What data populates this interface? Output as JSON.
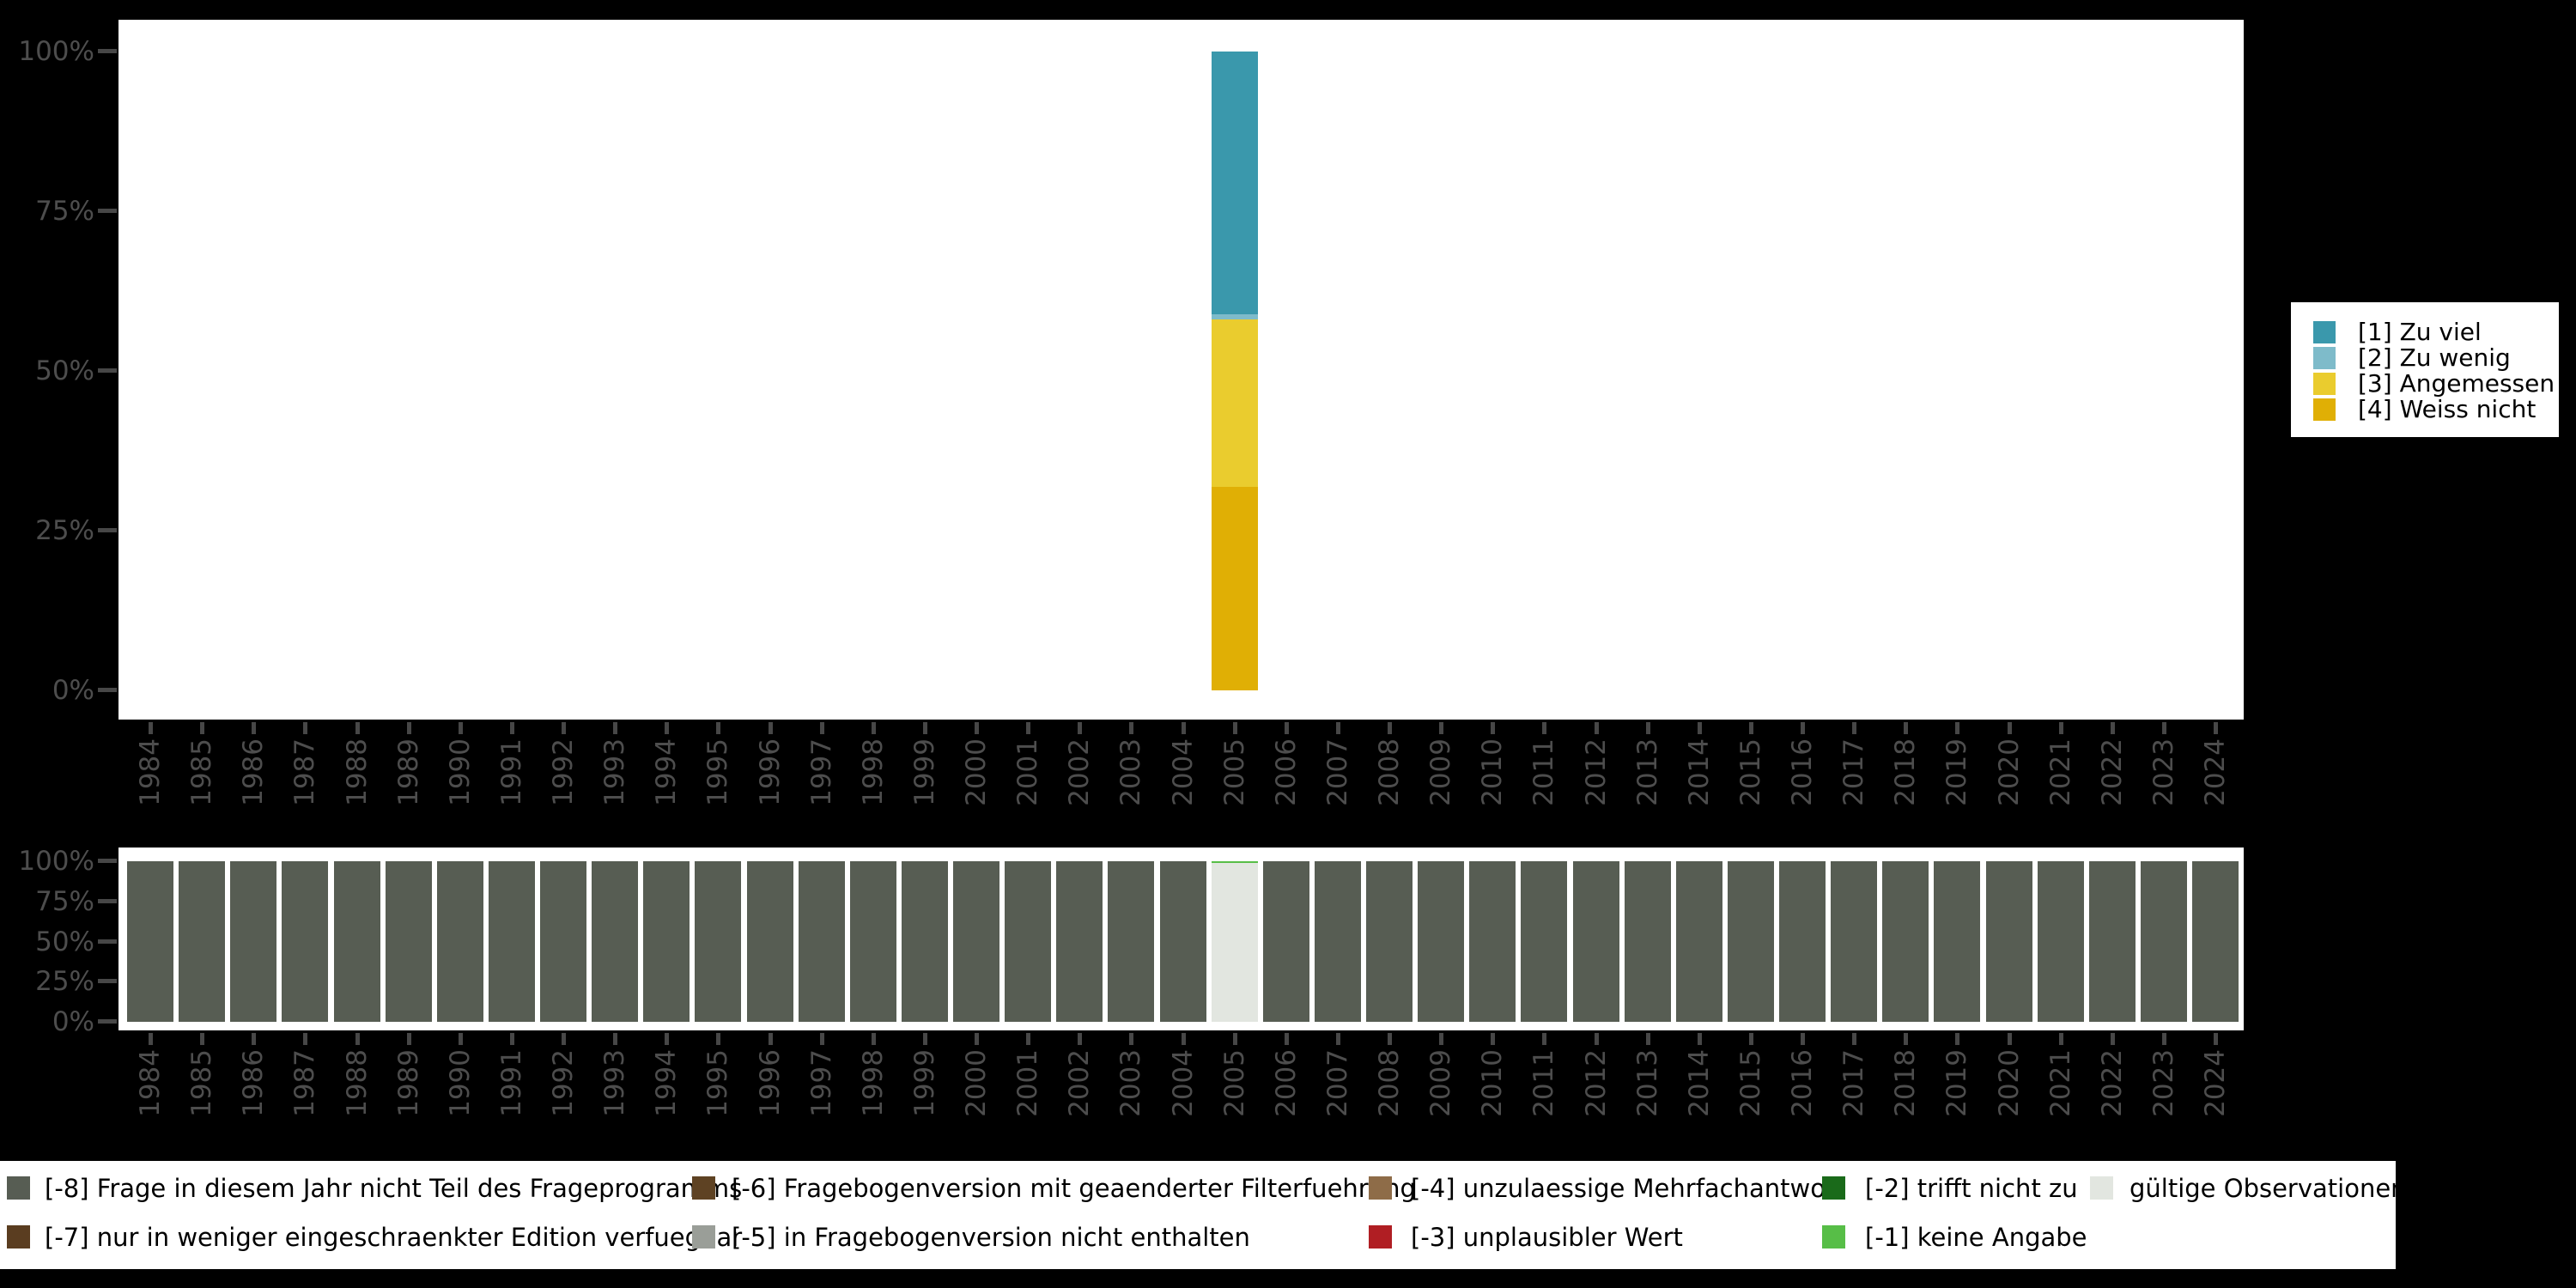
{
  "colors": {
    "background": "#000000",
    "panel": "#ffffff",
    "axis_text": "#4d4d4d",
    "axis_tick": "#474747",
    "legend_text": "#000000",
    "cat_1_zu_viel": "#3a98ac",
    "cat_2_zu_wenig": "#7ebbca",
    "cat_3_angemessen": "#eacc2e",
    "cat_4_weiss_nicht": "#e0af05",
    "miss_8": "#575d53",
    "miss_7": "#5a3d20",
    "miss_6": "#5e4223",
    "miss_5": "#9a9e98",
    "miss_4": "#8e6c48",
    "miss_3": "#b01e23",
    "miss_2": "#1a6a1a",
    "miss_1": "#57be47",
    "valid": "#e2e6e0"
  },
  "axes": {
    "y_tick_labels": [
      "100%",
      "75%",
      "50%",
      "25%",
      "0%"
    ],
    "x_tick_labels": [
      "1984",
      "1985",
      "1986",
      "1987",
      "1988",
      "1989",
      "1990",
      "1991",
      "1992",
      "1993",
      "1994",
      "1995",
      "1996",
      "1997",
      "1998",
      "1999",
      "2000",
      "2001",
      "2002",
      "2003",
      "2004",
      "2005",
      "2006",
      "2007",
      "2008",
      "2009",
      "2010",
      "2011",
      "2012",
      "2013",
      "2014",
      "2015",
      "2016",
      "2017",
      "2018",
      "2019",
      "2020",
      "2021",
      "2022",
      "2023",
      "2024"
    ]
  },
  "category_legend": {
    "items": [
      {
        "label": "[1] Zu viel",
        "color": "#3a98ac"
      },
      {
        "label": "[2] Zu wenig",
        "color": "#7ebbca"
      },
      {
        "label": "[3] Angemessen",
        "color": "#eacc2e"
      },
      {
        "label": "[4] Weiss nicht",
        "color": "#e0af05"
      }
    ]
  },
  "missing_legend": {
    "items": [
      {
        "label": "[-8] Frage in diesem Jahr nicht Teil des Frageprogramms",
        "color": "#575d53"
      },
      {
        "label": "[-7] nur in weniger eingeschraenkter Edition verfuegbar",
        "color": "#5a3d20"
      },
      {
        "label": "[-6] Fragebogenversion mit geaenderter Filterfuehrung",
        "color": "#5e4223"
      },
      {
        "label": "[-5] in Fragebogenversion nicht enthalten",
        "color": "#9a9e98"
      },
      {
        "label": "[-4] unzulaessige Mehrfachantwort",
        "color": "#8e6c48"
      },
      {
        "label": "[-3] unplausibler Wert",
        "color": "#b01e23"
      },
      {
        "label": "[-2] trifft nicht zu",
        "color": "#1a6a1a"
      },
      {
        "label": "[-1] keine Angabe",
        "color": "#57be47"
      },
      {
        "label": "gültige Observationen",
        "color": "#e2e6e0"
      }
    ]
  },
  "chart_data": [
    {
      "type": "bar",
      "stacked": true,
      "title": "",
      "xlabel": "",
      "ylabel": "",
      "ylim": [
        0,
        100
      ],
      "yticks": [
        "0%",
        "25%",
        "50%",
        "75%",
        "100%"
      ],
      "grid": false,
      "legend_position": "right",
      "categories": [
        1984,
        1985,
        1986,
        1987,
        1988,
        1989,
        1990,
        1991,
        1992,
        1993,
        1994,
        1995,
        1996,
        1997,
        1998,
        1999,
        2000,
        2001,
        2002,
        2003,
        2004,
        2005,
        2006,
        2007,
        2008,
        2009,
        2010,
        2011,
        2012,
        2013,
        2014,
        2015,
        2016,
        2017,
        2018,
        2019,
        2020,
        2021,
        2022,
        2023,
        2024
      ],
      "series": [
        {
          "name": "[1] Zu viel",
          "color": "#3a98ac",
          "values": [
            0,
            0,
            0,
            0,
            0,
            0,
            0,
            0,
            0,
            0,
            0,
            0,
            0,
            0,
            0,
            0,
            0,
            0,
            0,
            0,
            0,
            41.1,
            0,
            0,
            0,
            0,
            0,
            0,
            0,
            0,
            0,
            0,
            0,
            0,
            0,
            0,
            0,
            0,
            0,
            0,
            0
          ]
        },
        {
          "name": "[2] Zu wenig",
          "color": "#7ebbca",
          "values": [
            0,
            0,
            0,
            0,
            0,
            0,
            0,
            0,
            0,
            0,
            0,
            0,
            0,
            0,
            0,
            0,
            0,
            0,
            0,
            0,
            0,
            0.9,
            0,
            0,
            0,
            0,
            0,
            0,
            0,
            0,
            0,
            0,
            0,
            0,
            0,
            0,
            0,
            0,
            0,
            0,
            0
          ]
        },
        {
          "name": "[3] Angemessen",
          "color": "#eacc2e",
          "values": [
            0,
            0,
            0,
            0,
            0,
            0,
            0,
            0,
            0,
            0,
            0,
            0,
            0,
            0,
            0,
            0,
            0,
            0,
            0,
            0,
            0,
            26.2,
            0,
            0,
            0,
            0,
            0,
            0,
            0,
            0,
            0,
            0,
            0,
            0,
            0,
            0,
            0,
            0,
            0,
            0,
            0
          ]
        },
        {
          "name": "[4] Weiss nicht",
          "color": "#e0af05",
          "values": [
            0,
            0,
            0,
            0,
            0,
            0,
            0,
            0,
            0,
            0,
            0,
            0,
            0,
            0,
            0,
            0,
            0,
            0,
            0,
            0,
            0,
            31.8,
            0,
            0,
            0,
            0,
            0,
            0,
            0,
            0,
            0,
            0,
            0,
            0,
            0,
            0,
            0,
            0,
            0,
            0,
            0
          ]
        }
      ],
      "note": "stacking order bottom-to-top: [4],[3],[2],[1]"
    },
    {
      "type": "bar",
      "stacked": true,
      "title": "",
      "xlabel": "",
      "ylabel": "",
      "ylim": [
        0,
        100
      ],
      "yticks": [
        "0%",
        "25%",
        "50%",
        "75%",
        "100%"
      ],
      "grid": false,
      "legend_position": "bottom",
      "categories": [
        1984,
        1985,
        1986,
        1987,
        1988,
        1989,
        1990,
        1991,
        1992,
        1993,
        1994,
        1995,
        1996,
        1997,
        1998,
        1999,
        2000,
        2001,
        2002,
        2003,
        2004,
        2005,
        2006,
        2007,
        2008,
        2009,
        2010,
        2011,
        2012,
        2013,
        2014,
        2015,
        2016,
        2017,
        2018,
        2019,
        2020,
        2021,
        2022,
        2023,
        2024
      ],
      "series": [
        {
          "name": "gültige Observationen",
          "color": "#e2e6e0",
          "values": [
            0,
            0,
            0,
            0,
            0,
            0,
            0,
            0,
            0,
            0,
            0,
            0,
            0,
            0,
            0,
            0,
            0,
            0,
            0,
            0,
            0,
            99,
            0,
            0,
            0,
            0,
            0,
            0,
            0,
            0,
            0,
            0,
            0,
            0,
            0,
            0,
            0,
            0,
            0,
            0,
            0
          ]
        },
        {
          "name": "[-1] keine Angabe",
          "color": "#57be47",
          "values": [
            0,
            0,
            0,
            0,
            0,
            0,
            0,
            0,
            0,
            0,
            0,
            0,
            0,
            0,
            0,
            0,
            0,
            0,
            0,
            0,
            0,
            1,
            0,
            0,
            0,
            0,
            0,
            0,
            0,
            0,
            0,
            0,
            0,
            0,
            0,
            0,
            0,
            0,
            0,
            0,
            0
          ]
        },
        {
          "name": "[-8] Frage in diesem Jahr nicht Teil des Frageprogramms",
          "color": "#575d53",
          "values": [
            100,
            100,
            100,
            100,
            100,
            100,
            100,
            100,
            100,
            100,
            100,
            100,
            100,
            100,
            100,
            100,
            100,
            100,
            100,
            100,
            100,
            0,
            100,
            100,
            100,
            100,
            100,
            100,
            100,
            100,
            100,
            100,
            100,
            100,
            100,
            100,
            100,
            100,
            100,
            100,
            100
          ]
        }
      ],
      "note": "stacking order bottom-to-top as listed"
    }
  ]
}
